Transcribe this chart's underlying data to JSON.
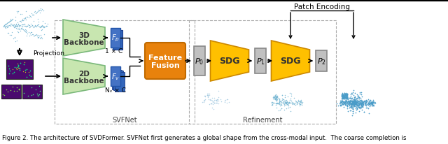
{
  "fig_width": 6.4,
  "fig_height": 2.07,
  "dpi": 100,
  "bg_color": "#ffffff",
  "caption": "Figure 2. The architecture of SVDFormer. SVFNet first generates a global shape from the cross-modal input.  The coarse completion is",
  "caption_fontsize": 6.2,
  "point_cloud_color": "#7ab8d4",
  "purple_box_color": "#4a0a6e",
  "green_trap_color": "#c8e6b0",
  "green_trap_edge": "#7ab87a",
  "blue_box_color": "#4472c4",
  "orange_box_color": "#e8820c",
  "gray_box_color": "#c0c0c0",
  "yellow_trap_color": "#ffc000",
  "yellow_trap_edge": "#cc8800",
  "arrow_color": "#000000",
  "svfnet_label": "SVFNet",
  "refinement_label": "Refinement",
  "patch_encoding_label": "Patch Encoding",
  "feature_fusion_line1": "Feature",
  "feature_fusion_line2": "Fusion",
  "projection_label": "Projection",
  "backbone_3d_line1": "3D",
  "backbone_3d_line2": "Backbone",
  "backbone_2d_line1": "2D",
  "backbone_2d_line2": "Backbone",
  "one_c_label": "1 × C",
  "nv_c_label": "Nᵥ × C",
  "sdg_label": "SDG"
}
